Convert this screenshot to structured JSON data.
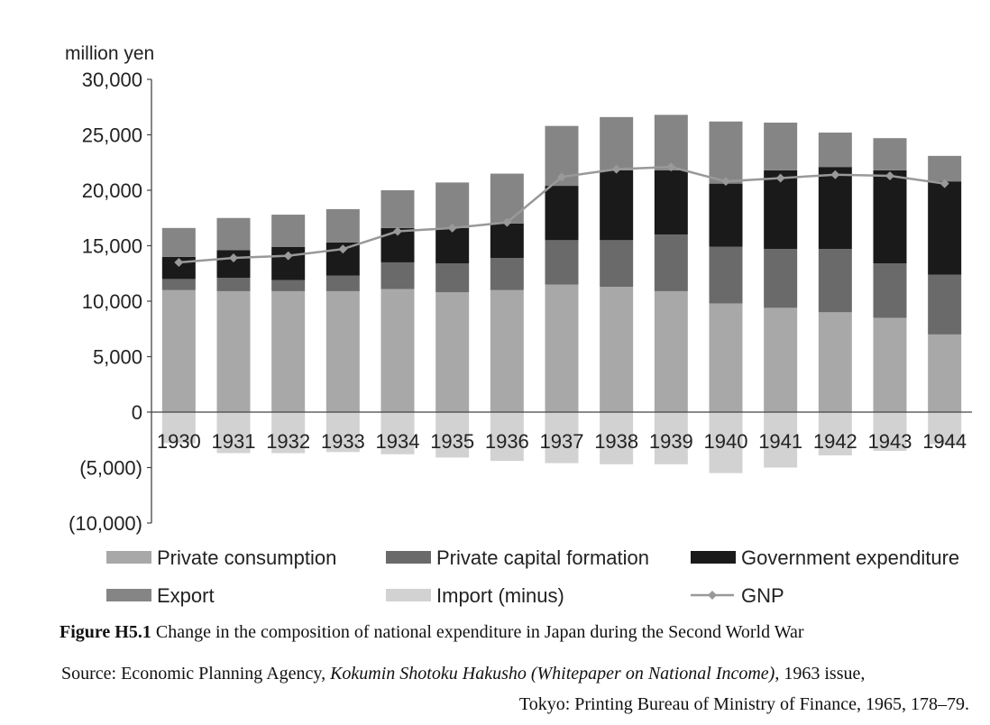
{
  "chart_data": {
    "type": "bar",
    "stacked": true,
    "ylabel": "million yen",
    "ylim": [
      -10000,
      30000
    ],
    "yticks": [
      30000,
      25000,
      20000,
      15000,
      10000,
      5000,
      0,
      -5000,
      -10000
    ],
    "ytick_labels": [
      "30,000",
      "25,000",
      "20,000",
      "15,000",
      "10,000",
      "5,000",
      "0",
      "(5,000)",
      "(10,000)"
    ],
    "categories": [
      "1930",
      "1931",
      "1932",
      "1933",
      "1934",
      "1935",
      "1936",
      "1937",
      "1938",
      "1939",
      "1940",
      "1941",
      "1942",
      "1943",
      "1944"
    ],
    "series": [
      {
        "name": "Private consumption",
        "color": "#a8a8a8",
        "values": [
          11000,
          10900,
          10900,
          10900,
          11100,
          10800,
          11000,
          11500,
          11300,
          10900,
          9800,
          9400,
          9000,
          8500,
          7000
        ]
      },
      {
        "name": "Private capital formation",
        "color": "#6a6a6a",
        "values": [
          1000,
          1200,
          1000,
          1400,
          2400,
          2600,
          2900,
          4000,
          4200,
          5100,
          5100,
          5300,
          5700,
          4900,
          5400
        ]
      },
      {
        "name": "Government expenditure",
        "color": "#1a1a1a",
        "values": [
          2000,
          2500,
          3000,
          3000,
          3100,
          3200,
          3100,
          4900,
          6300,
          5800,
          5700,
          7100,
          7400,
          8400,
          8400
        ]
      },
      {
        "name": "Export",
        "color": "#858585",
        "values": [
          2600,
          2900,
          2900,
          3000,
          3400,
          4100,
          4500,
          5400,
          4800,
          5000,
          5600,
          4300,
          3100,
          2900,
          2300
        ]
      },
      {
        "name": "Import (minus)",
        "color": "#d2d2d2",
        "values": [
          -2800,
          -3700,
          -3700,
          -3600,
          -3800,
          -4100,
          -4400,
          -4600,
          -4700,
          -4700,
          -5500,
          -5000,
          -3900,
          -3500,
          -2900
        ]
      },
      {
        "name": "GNP",
        "type": "line",
        "color": "#999999",
        "values": [
          13500,
          13900,
          14100,
          14700,
          16300,
          16600,
          17100,
          21200,
          21900,
          22100,
          20800,
          21100,
          21400,
          21300,
          20600
        ]
      }
    ],
    "legend": {
      "placement": "bottom",
      "entries": [
        "Private consumption",
        "Private capital formation",
        "Government expenditure",
        "Export",
        "Import (minus)",
        "GNP"
      ]
    },
    "grid": false
  },
  "caption": {
    "figure_label": "Figure H5.1",
    "figure_text": " Change in the composition of national expenditure in Japan during the Second World War",
    "source_prefix": "Source: Economic Planning Agency, ",
    "source_title": "Kokumin Shotoku Hakusho (Whitepaper on National Income)",
    "source_suffix": ", 1963 issue,",
    "source_line2": "Tokyo: Printing Bureau of Ministry of Finance, 1965, 178–79."
  }
}
